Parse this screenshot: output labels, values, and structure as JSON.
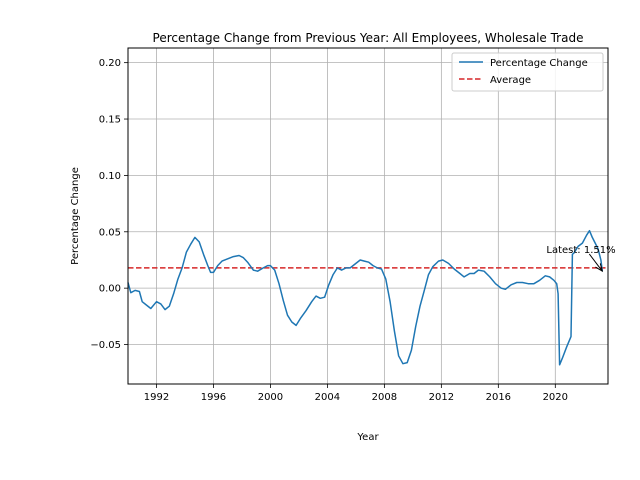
{
  "chart_data": {
    "type": "line",
    "title": "Percentage Change from Previous Year: All Employees, Wholesale Trade",
    "xlabel": "Year",
    "ylabel": "Percentage Change",
    "xlim": [
      1990.0,
      2023.7
    ],
    "ylim": [
      -0.085,
      0.213
    ],
    "x_ticks": [
      1992,
      1996,
      2000,
      2004,
      2008,
      2012,
      2016,
      2020
    ],
    "x_tick_labels": [
      "1992",
      "1996",
      "2000",
      "2004",
      "2008",
      "2012",
      "2016",
      "2020"
    ],
    "y_ticks": [
      -0.05,
      0.0,
      0.05,
      0.1,
      0.15,
      0.2
    ],
    "y_tick_labels": [
      "−0.05",
      "0.00",
      "0.05",
      "0.10",
      "0.15",
      "0.20"
    ],
    "grid": true,
    "legend_position": "top-right",
    "series": [
      {
        "name": "Percentage Change",
        "color": "#1f77b4",
        "x": [
          1990.0,
          1990.2,
          1990.5,
          1990.8,
          1991.0,
          1991.3,
          1991.6,
          1992.0,
          1992.3,
          1992.6,
          1992.9,
          1993.2,
          1993.5,
          1993.8,
          1994.1,
          1994.4,
          1994.7,
          1995.0,
          1995.3,
          1995.6,
          1995.8,
          1996.0,
          1996.3,
          1996.6,
          1997.0,
          1997.4,
          1997.8,
          1998.1,
          1998.4,
          1998.8,
          1999.1,
          1999.5,
          1999.8,
          2000.0,
          2000.3,
          2000.6,
          2000.9,
          2001.2,
          2001.5,
          2001.8,
          2002.1,
          2002.5,
          2002.9,
          2003.2,
          2003.5,
          2003.8,
          2004.1,
          2004.4,
          2004.7,
          2005.0,
          2005.3,
          2005.6,
          2006.0,
          2006.3,
          2006.6,
          2006.9,
          2007.2,
          2007.5,
          2007.8,
          2008.1,
          2008.4,
          2008.7,
          2009.0,
          2009.3,
          2009.6,
          2009.9,
          2010.2,
          2010.5,
          2010.8,
          2011.1,
          2011.4,
          2011.8,
          2012.1,
          2012.5,
          2012.9,
          2013.3,
          2013.6,
          2014.0,
          2014.3,
          2014.6,
          2015.0,
          2015.4,
          2015.8,
          2016.2,
          2016.5,
          2016.9,
          2017.3,
          2017.7,
          2018.1,
          2018.5,
          2018.9,
          2019.3,
          2019.6,
          2019.9,
          2020.1,
          2020.2,
          2020.3,
          2020.5,
          2020.8,
          2021.1,
          2021.2,
          2021.3,
          2021.6,
          2021.9,
          2022.2,
          2022.4,
          2022.6,
          2022.8,
          2023.0,
          2023.2,
          2023.3
        ],
        "values": [
          0.005,
          -0.004,
          -0.002,
          -0.003,
          -0.012,
          -0.015,
          -0.018,
          -0.012,
          -0.014,
          -0.019,
          -0.016,
          -0.005,
          0.008,
          0.018,
          0.032,
          0.039,
          0.045,
          0.041,
          0.03,
          0.02,
          0.014,
          0.014,
          0.02,
          0.024,
          0.026,
          0.028,
          0.029,
          0.027,
          0.023,
          0.016,
          0.015,
          0.018,
          0.02,
          0.02,
          0.016,
          0.004,
          -0.011,
          -0.024,
          -0.03,
          -0.033,
          -0.027,
          -0.02,
          -0.012,
          -0.007,
          -0.009,
          -0.008,
          0.003,
          0.012,
          0.018,
          0.016,
          0.018,
          0.018,
          0.022,
          0.025,
          0.024,
          0.023,
          0.02,
          0.018,
          0.017,
          0.008,
          -0.012,
          -0.038,
          -0.06,
          -0.067,
          -0.066,
          -0.055,
          -0.034,
          -0.016,
          -0.002,
          0.012,
          0.019,
          0.024,
          0.025,
          0.022,
          0.017,
          0.013,
          0.01,
          0.013,
          0.013,
          0.016,
          0.015,
          0.01,
          0.004,
          0.0,
          -0.001,
          0.003,
          0.005,
          0.005,
          0.004,
          0.004,
          0.007,
          0.011,
          0.01,
          0.007,
          0.004,
          -0.005,
          -0.068,
          -0.062,
          -0.052,
          -0.043,
          0.03,
          0.031,
          0.037,
          0.04,
          0.047,
          0.051,
          0.045,
          0.04,
          0.035,
          0.025,
          0.0151
        ]
      }
    ],
    "average": {
      "name": "Average",
      "value": 0.018,
      "color": "#d62728"
    },
    "annotation": {
      "text": "Latest: 1.51%",
      "x": 2023.3,
      "y": 0.0151
    }
  }
}
